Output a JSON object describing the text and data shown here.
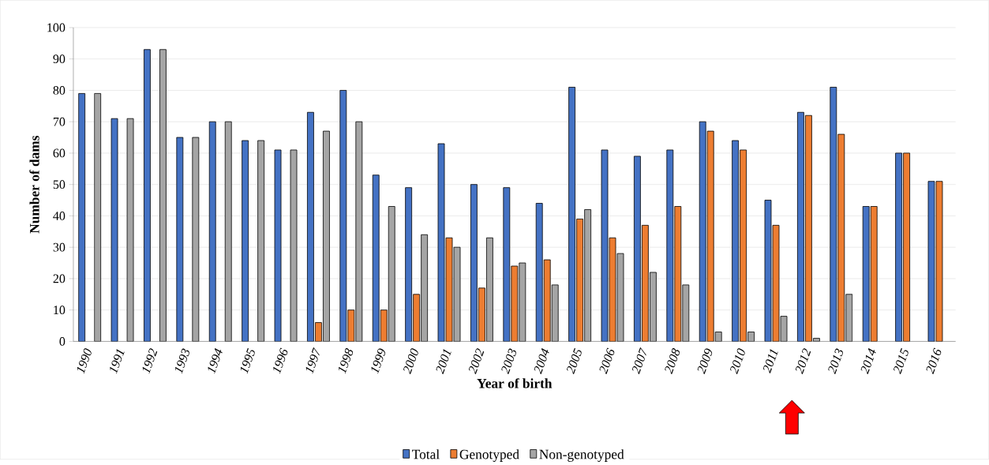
{
  "chart_data": {
    "type": "bar",
    "xlabel": "Year of birth",
    "ylabel": "Number of dams",
    "categories": [
      "1990",
      "1991",
      "1992",
      "1993",
      "1994",
      "1995",
      "1996",
      "1997",
      "1998",
      "1999",
      "2000",
      "2001",
      "2002",
      "2003",
      "2004",
      "2005",
      "2006",
      "2007",
      "2008",
      "2009",
      "2010",
      "2011",
      "2012",
      "2013",
      "2014",
      "2015",
      "2016"
    ],
    "series": [
      {
        "name": "Total",
        "color": "#4472c4",
        "values": [
          79,
          71,
          93,
          65,
          70,
          64,
          61,
          73,
          80,
          53,
          49,
          63,
          50,
          49,
          44,
          81,
          61,
          59,
          61,
          70,
          64,
          45,
          73,
          81,
          43,
          60,
          51
        ]
      },
      {
        "name": "Genotyped",
        "color": "#ed7d31",
        "values": [
          null,
          null,
          null,
          null,
          null,
          null,
          null,
          6,
          10,
          10,
          15,
          33,
          17,
          24,
          26,
          39,
          33,
          37,
          43,
          67,
          61,
          37,
          72,
          66,
          43,
          60,
          51
        ]
      },
      {
        "name": "Non-genotyped",
        "color": "#a5a5a5",
        "values": [
          79,
          71,
          93,
          65,
          70,
          64,
          61,
          67,
          70,
          43,
          34,
          30,
          33,
          25,
          18,
          42,
          28,
          22,
          18,
          3,
          3,
          8,
          1,
          15,
          null,
          null,
          null
        ]
      }
    ],
    "ylim": [
      0,
      100
    ],
    "yticks": [
      0,
      10,
      20,
      30,
      40,
      50,
      60,
      70,
      80,
      90,
      100
    ],
    "grid": "y",
    "legend": "bottom"
  }
}
